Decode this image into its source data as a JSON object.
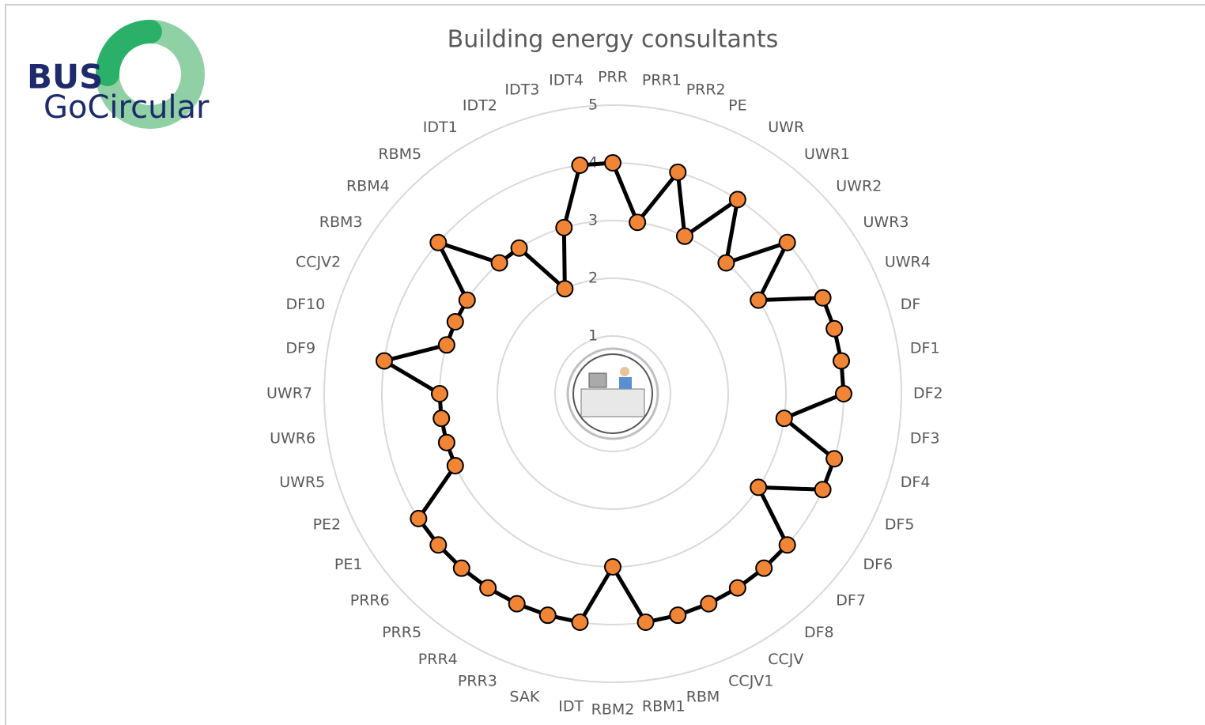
{
  "logo": {
    "line1": "BUS",
    "line2": "GoCircular"
  },
  "chart_data": {
    "type": "radar",
    "title": "Building energy consultants",
    "categories": [
      "PRR",
      "PRR1",
      "PRR2",
      "PE",
      "UWR",
      "UWR1",
      "UWR2",
      "UWR3",
      "UWR4",
      "DF",
      "DF1",
      "DF2",
      "DF3",
      "DF4",
      "DF5",
      "DF6",
      "DF7",
      "DF8",
      "CCJV",
      "CCJV1",
      "RBM",
      "RBM1",
      "RBM2",
      "IDT",
      "SAK",
      "PRR3",
      "PRR4",
      "PRR5",
      "PRR6",
      "PE1",
      "PE2",
      "UWR5",
      "UWR6",
      "UWR7",
      "DF9",
      "DF10",
      "CCJV2",
      "RBM3",
      "RBM4",
      "RBM5",
      "IDT1",
      "IDT2",
      "IDT3",
      "IDT4"
    ],
    "values": [
      4,
      3,
      4,
      3,
      4,
      3,
      4,
      3,
      4,
      4,
      4,
      4,
      3,
      4,
      4,
      3,
      4,
      4,
      4,
      4,
      4,
      4,
      3,
      4,
      4,
      4,
      4,
      4,
      4,
      4,
      3,
      3,
      3,
      3,
      4,
      3,
      3,
      3,
      4,
      3,
      3,
      2,
      3,
      4
    ],
    "color": "#f08536",
    "line_color": "#000000",
    "ylim": [
      0,
      5
    ],
    "yticks": [
      1,
      2,
      3,
      4,
      5
    ],
    "grid": true
  }
}
